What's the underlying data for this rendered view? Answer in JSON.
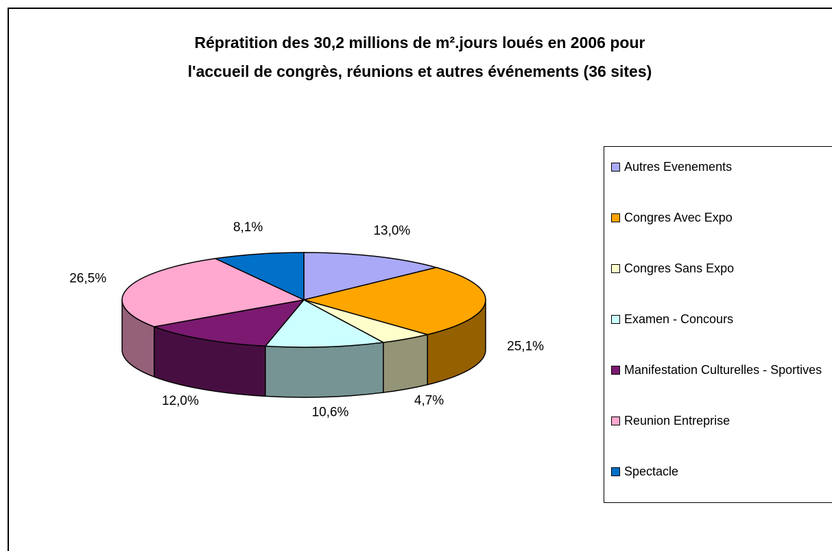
{
  "chart_data": {
    "type": "pie3d",
    "title": [
      "Répratition des 30,2 millions de m².jours loués en 2006 pour",
      "l'accueil de congrès, réunions  et autres événements (36 sites)"
    ],
    "categories": [
      "Autres Evenements",
      "Congres Avec Expo",
      "Congres Sans Expo",
      "Examen - Concours",
      "Manifestation Culturelles - Sportives",
      "Reunion Entreprise",
      "Spectacle"
    ],
    "values": [
      13.0,
      25.1,
      4.7,
      10.6,
      12.0,
      26.5,
      8.1
    ],
    "value_labels": [
      "13,0%",
      "25,1%",
      "4,7%",
      "10,6%",
      "12,0%",
      "26,5%",
      "8,1%"
    ],
    "colors": [
      "#a9a9f7",
      "#ffa500",
      "#ffffcc",
      "#ccffff",
      "#7b1a70",
      "#ffa8d0",
      "#0070c8"
    ],
    "legend": "right"
  }
}
